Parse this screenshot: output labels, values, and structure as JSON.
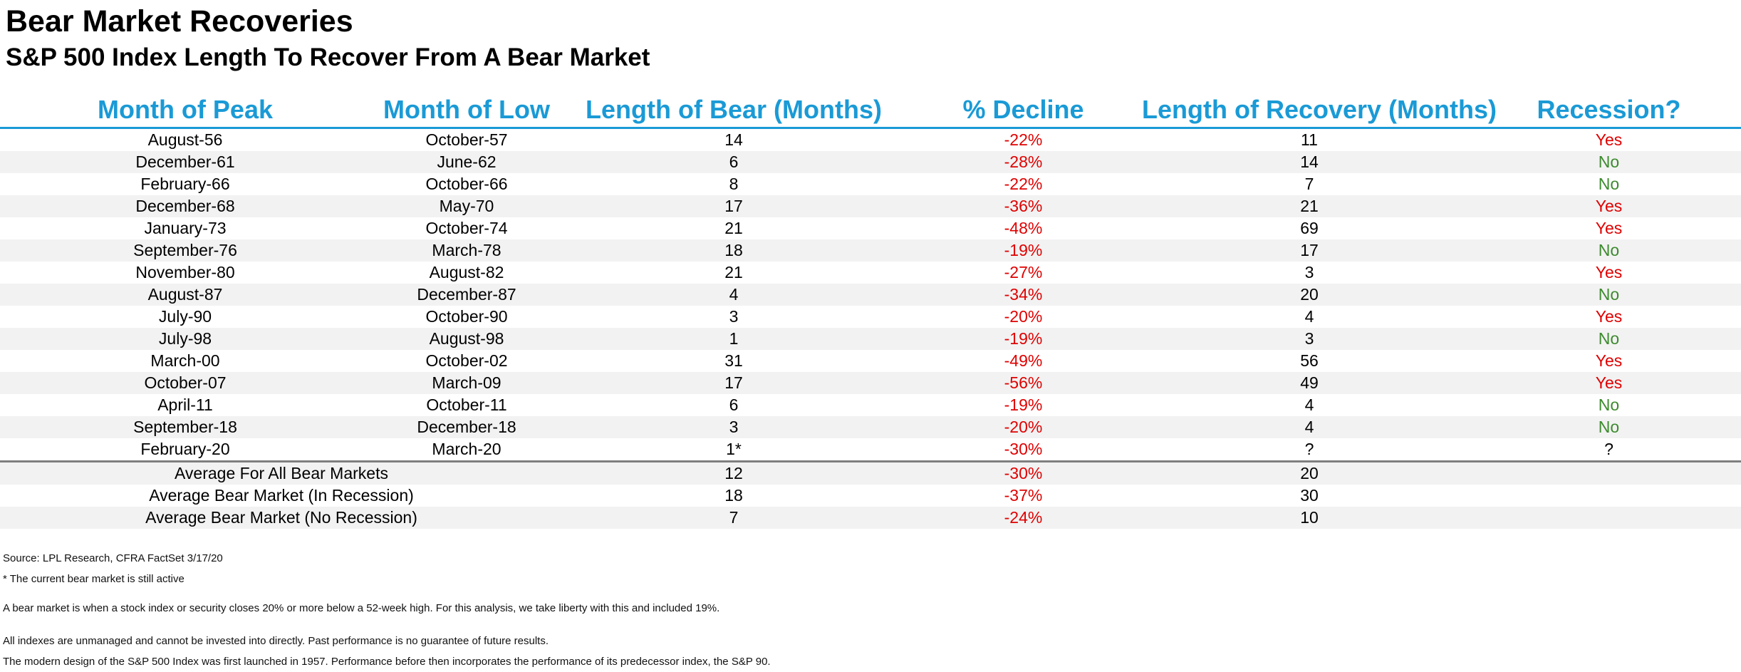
{
  "title": "Bear Market Recoveries",
  "subtitle": "S&P 500 Index Length To Recover From A Bear Market",
  "headers": [
    "Month of Peak",
    "Month of Low",
    "Length of Bear (Months)",
    "% Decline",
    "Length of Recovery (Months)",
    "Recession?"
  ],
  "rows": [
    {
      "peak": "August-56",
      "low": "October-57",
      "bear": "14",
      "decline": "-22%",
      "recovery": "11",
      "recession": "Yes"
    },
    {
      "peak": "December-61",
      "low": "June-62",
      "bear": "6",
      "decline": "-28%",
      "recovery": "14",
      "recession": "No"
    },
    {
      "peak": "February-66",
      "low": "October-66",
      "bear": "8",
      "decline": "-22%",
      "recovery": "7",
      "recession": "No"
    },
    {
      "peak": "December-68",
      "low": "May-70",
      "bear": "17",
      "decline": "-36%",
      "recovery": "21",
      "recession": "Yes"
    },
    {
      "peak": "January-73",
      "low": "October-74",
      "bear": "21",
      "decline": "-48%",
      "recovery": "69",
      "recession": "Yes"
    },
    {
      "peak": "September-76",
      "low": "March-78",
      "bear": "18",
      "decline": "-19%",
      "recovery": "17",
      "recession": "No"
    },
    {
      "peak": "November-80",
      "low": "August-82",
      "bear": "21",
      "decline": "-27%",
      "recovery": "3",
      "recession": "Yes"
    },
    {
      "peak": "August-87",
      "low": "December-87",
      "bear": "4",
      "decline": "-34%",
      "recovery": "20",
      "recession": "No"
    },
    {
      "peak": "July-90",
      "low": "October-90",
      "bear": "3",
      "decline": "-20%",
      "recovery": "4",
      "recession": "Yes"
    },
    {
      "peak": "July-98",
      "low": "August-98",
      "bear": "1",
      "decline": "-19%",
      "recovery": "3",
      "recession": "No"
    },
    {
      "peak": "March-00",
      "low": "October-02",
      "bear": "31",
      "decline": "-49%",
      "recovery": "56",
      "recession": "Yes"
    },
    {
      "peak": "October-07",
      "low": "March-09",
      "bear": "17",
      "decline": "-56%",
      "recovery": "49",
      "recession": "Yes"
    },
    {
      "peak": "April-11",
      "low": "October-11",
      "bear": "6",
      "decline": "-19%",
      "recovery": "4",
      "recession": "No"
    },
    {
      "peak": "September-18",
      "low": "December-18",
      "bear": "3",
      "decline": "-20%",
      "recovery": "4",
      "recession": "No"
    },
    {
      "peak": "February-20",
      "low": "March-20",
      "bear": "1*",
      "decline": "-30%",
      "recovery": "?",
      "recession": "?"
    }
  ],
  "averages": [
    {
      "label": "Average For All Bear Markets",
      "bear": "12",
      "decline": "-30%",
      "recovery": "20"
    },
    {
      "label": "Average Bear Market (In Recession)",
      "bear": "18",
      "decline": "-37%",
      "recovery": "30"
    },
    {
      "label": "Average Bear Market (No Recession)",
      "bear": "7",
      "decline": "-24%",
      "recovery": "10"
    }
  ],
  "footnotes": {
    "source": "Source: LPL Research, CFRA FactSet 3/17/20",
    "asterisk": "* The current bear market is still active",
    "definition": "A bear market is when a stock index or security closes 20% or more below a 52-week high. For this analysis, we take liberty with this and included 19%.",
    "disclaimer": "All indexes are unmanaged and cannot be invested into directly. Past performance is no guarantee of future results.",
    "history": "The modern design of the S&P 500 Index was first launched in 1957. Performance before then incorporates the performance of its predecessor index, the S&P 90."
  },
  "colors": {
    "accent": "#1a9ad6",
    "negative": "#e00000",
    "no": "#3c8a2e",
    "shade": "#f2f2f2"
  }
}
